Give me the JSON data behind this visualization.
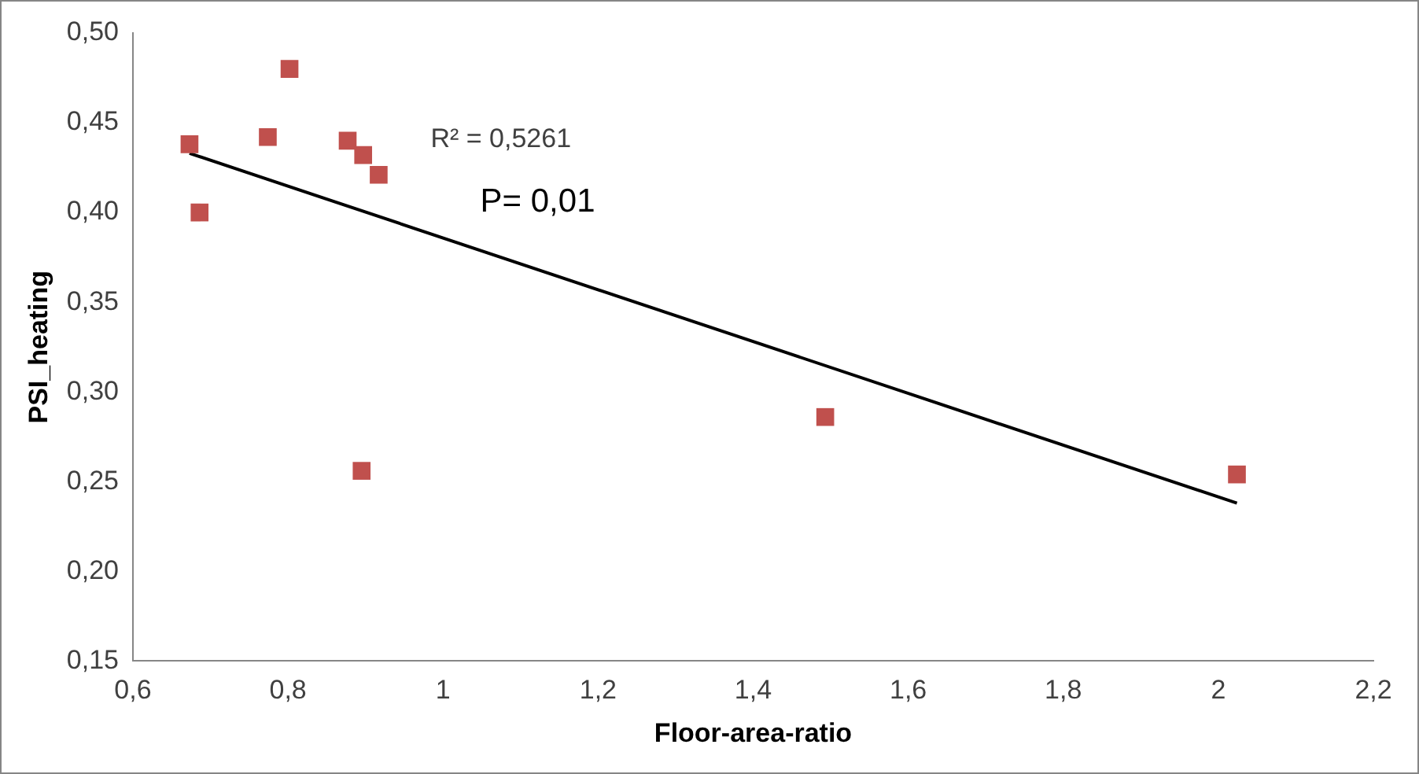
{
  "chart_data": {
    "type": "scatter",
    "xlabel": "Floor-area-ratio",
    "ylabel": "PSI_heating",
    "annotations": [
      "R² = 0,5261",
      "P= 0,01"
    ],
    "series": [
      {
        "type": "scatter",
        "color": "#c0504d",
        "marker": "square",
        "x": [
          0.673,
          0.686,
          0.774,
          0.802,
          0.877,
          0.897,
          0.917,
          0.895,
          1.493,
          2.024
        ],
        "values": [
          0.438,
          0.4,
          0.442,
          0.48,
          0.44,
          0.432,
          0.421,
          0.256,
          0.286,
          0.254
        ]
      },
      {
        "type": "line",
        "color": "#000000",
        "marker": "none",
        "x": [
          0.673,
          2.024
        ],
        "values": [
          0.433,
          0.238
        ]
      }
    ],
    "xlim": [
      0.6,
      2.2
    ],
    "xticks": [
      {
        "value": 0.6,
        "label": "0,6"
      },
      {
        "value": 0.8,
        "label": "0,8"
      },
      1,
      {
        "value": 1.2,
        "label": "1,2"
      },
      {
        "value": 1.4,
        "label": "1,4"
      },
      {
        "value": 1.6,
        "label": "1,6"
      },
      {
        "value": 1.8,
        "label": "1,8"
      },
      2,
      {
        "value": 2.2,
        "label": "2,2"
      }
    ],
    "ylim": [
      0.15,
      0.5
    ],
    "yticks": [
      {
        "value": 0.15,
        "label": "0,15"
      },
      {
        "value": 0.2,
        "label": "0,20"
      },
      {
        "value": 0.25,
        "label": "0,25"
      },
      {
        "value": 0.3,
        "label": "0,30"
      },
      {
        "value": 0.35,
        "label": "0,35"
      },
      {
        "value": 0.4,
        "label": "0,40"
      },
      {
        "value": 0.45,
        "label": "0,45"
      },
      {
        "value": 0.5,
        "label": "0,50"
      }
    ],
    "grid": false,
    "legend": false
  }
}
